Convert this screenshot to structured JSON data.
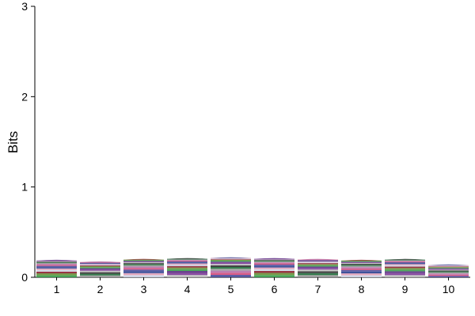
{
  "chart_data": {
    "type": "sequence-logo",
    "ylabel": "Bits",
    "xlabel": "",
    "ylim": [
      0,
      3
    ],
    "y_ticks": [
      "0",
      "1",
      "2",
      "3"
    ],
    "positions": [
      "1",
      "2",
      "3",
      "4",
      "5",
      "6",
      "7",
      "8",
      "9",
      "10"
    ],
    "column_heights_bits": [
      0.18,
      0.16,
      0.19,
      0.2,
      0.21,
      0.2,
      0.19,
      0.18,
      0.19,
      0.12
    ],
    "stack_colors": [
      "#3a9f4a",
      "#7d3c98",
      "#2f2f2f",
      "#9a9a9a",
      "#d14b7b",
      "#2a3f8f",
      "#d0d6e8",
      "#6a8f3a",
      "#5a2d82",
      "#c0c0c0",
      "#1f6e3a",
      "#b56fa8",
      "#4b4b9a",
      "#e0a0b8",
      "#8c1f2f"
    ],
    "grid": false,
    "legend": "none"
  }
}
